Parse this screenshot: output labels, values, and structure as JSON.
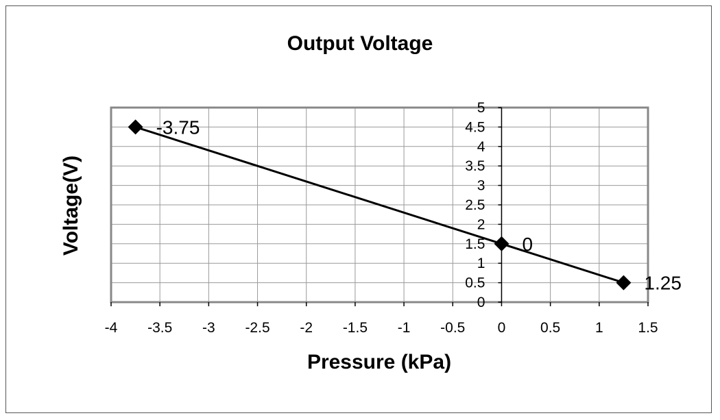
{
  "chart_data": {
    "type": "scatter",
    "title": "Output Voltage",
    "xlabel": "Pressure (kPa)",
    "ylabel": "Voltage(V)",
    "xlim": [
      -4,
      1.5
    ],
    "ylim": [
      0,
      5
    ],
    "x_ticks": [
      -4,
      -3.5,
      -3,
      -2.5,
      -2,
      -1.5,
      -1,
      -0.5,
      0,
      0.5,
      1,
      1.5
    ],
    "y_ticks": [
      0,
      0.5,
      1,
      1.5,
      2,
      2.5,
      3,
      3.5,
      4,
      4.5,
      5
    ],
    "x_tick_labels": [
      "-4",
      "-3.5",
      "-3",
      "-2.5",
      "-2",
      "-1.5",
      "-1",
      "-0.5",
      "0",
      "0.5",
      "1",
      "1.5"
    ],
    "y_tick_labels": [
      "0",
      "0.5",
      "1",
      "1.5",
      "2",
      "2.5",
      "3",
      "3.5",
      "4",
      "4.5",
      "5"
    ],
    "grid": true,
    "marker": "diamond",
    "line_connected": true,
    "series": [
      {
        "x": [
          -3.75,
          0,
          1.25
        ],
        "y": [
          4.5,
          1.5,
          0.5
        ],
        "labels": [
          "-3.75",
          "0",
          "1.25"
        ],
        "color": "#000000"
      }
    ],
    "colors": {
      "grid": "#999999",
      "plot_border": "#888888",
      "line": "#000000",
      "marker": "#000000"
    }
  }
}
